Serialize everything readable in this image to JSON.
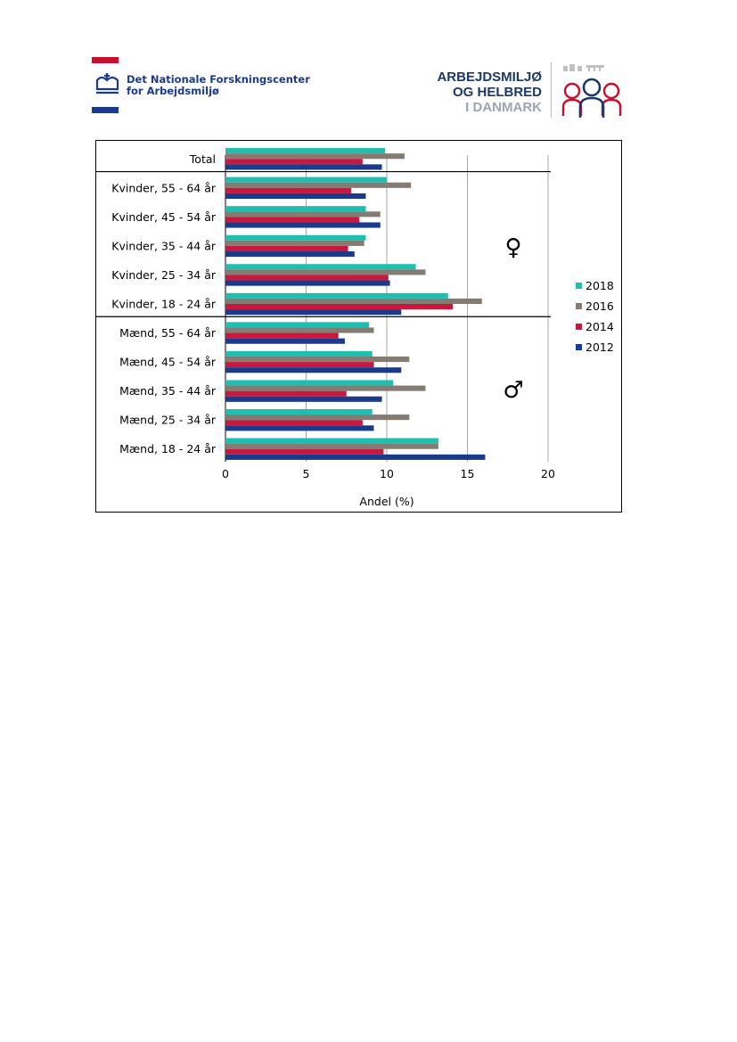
{
  "header": {
    "left_logo": {
      "line1": "Det Nationale Forskningscenter",
      "line2": "for Arbejdsmiljø",
      "colors": {
        "red": "#c8102e",
        "blue": "#1a3a8c"
      }
    },
    "right_logo": {
      "line1": "ARBEJDSMILJØ",
      "line2": "OG HELBRED",
      "line3": "I DANMARK",
      "colors": {
        "dark": "#1d3766",
        "light": "#9aa5b8",
        "red": "#c8102e"
      }
    }
  },
  "chart_data": {
    "type": "bar",
    "orientation": "horizontal",
    "categories": [
      "Total",
      "Kvinder, 55 - 64 år",
      "Kvinder, 45 - 54 år",
      "Kvinder, 35 - 44 år",
      "Kvinder, 25 - 34 år",
      "Kvinder, 18 - 24 år",
      "Mænd, 55 - 64 år",
      "Mænd, 45 - 54 år",
      "Mænd, 35 - 44 år",
      "Mænd, 25 - 34 år",
      "Mænd, 18 - 24 år"
    ],
    "series": [
      {
        "name": "2018",
        "color": "#1ebeb0",
        "values": [
          9.9,
          10.0,
          8.7,
          8.7,
          11.8,
          13.8,
          8.9,
          9.1,
          10.4,
          9.1,
          13.2
        ]
      },
      {
        "name": "2016",
        "color": "#847b72",
        "values": [
          11.1,
          11.5,
          9.6,
          8.6,
          12.4,
          15.9,
          9.2,
          11.4,
          12.4,
          11.4,
          13.2
        ]
      },
      {
        "name": "2014",
        "color": "#c8183e",
        "values": [
          8.5,
          7.8,
          8.3,
          7.6,
          10.1,
          14.1,
          7.0,
          9.2,
          7.5,
          8.5,
          9.8
        ]
      },
      {
        "name": "2012",
        "color": "#1a3a8c",
        "values": [
          9.7,
          8.7,
          9.6,
          8.0,
          10.2,
          10.9,
          7.4,
          10.9,
          9.7,
          9.2,
          16.1
        ]
      }
    ],
    "xlabel": "Andel (%)",
    "ylabel": "",
    "xlim": [
      0,
      20
    ],
    "xticks": [
      "0",
      "5",
      "10",
      "15",
      "20"
    ],
    "grid": "vertical",
    "legend": "right",
    "annotations": {
      "female_symbol": "♀",
      "male_symbol": "♂"
    }
  }
}
